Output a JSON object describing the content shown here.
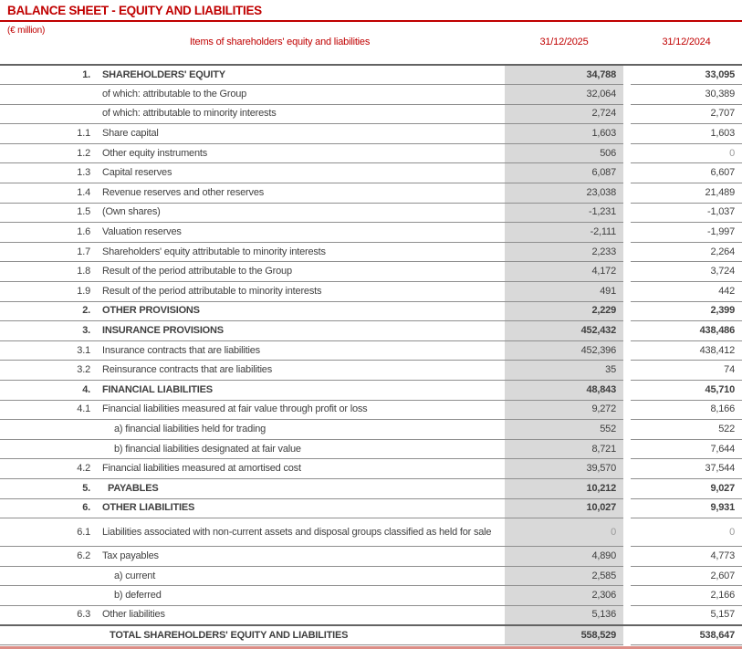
{
  "title": "BALANCE SHEET - EQUITY AND LIABILITIES",
  "unit_label": "(€ million)",
  "colors": {
    "accent_red": "#c00000",
    "column_shading": "#d9d9d9",
    "bottom_bar": "#dc8d86",
    "row_border": "#8f8f8f",
    "body_text": "#3f3f3f",
    "zero_value_text": "#9a9a9a"
  },
  "table": {
    "items_header": "Items of shareholders' equity and liabilities",
    "col_2025_header": "31/12/2025",
    "col_2024_header": "31/12/2024",
    "rows": [
      {
        "num": "1.",
        "label": "SHAREHOLDERS' EQUITY",
        "v2025": "34,788",
        "v2024": "33,095",
        "style": "section"
      },
      {
        "num": "",
        "label": "of which: attributable to the Group",
        "v2025": "32,064",
        "v2024": "30,389",
        "style": "normal"
      },
      {
        "num": "",
        "label": "of which: attributable to minority interests",
        "v2025": "2,724",
        "v2024": "2,707",
        "style": "normal"
      },
      {
        "num": "1.1",
        "label": "Share capital",
        "v2025": "1,603",
        "v2024": "1,603",
        "style": "normal"
      },
      {
        "num": "1.2",
        "label": "Other equity instruments",
        "v2025": "506",
        "v2024": "0",
        "style": "normal"
      },
      {
        "num": "1.3",
        "label": "Capital reserves",
        "v2025": "6,087",
        "v2024": "6,607",
        "style": "normal"
      },
      {
        "num": "1.4",
        "label": "Revenue reserves and other reserves",
        "v2025": "23,038",
        "v2024": "21,489",
        "style": "normal"
      },
      {
        "num": "1.5",
        "label": "(Own shares)",
        "v2025": "-1,231",
        "v2024": "-1,037",
        "style": "normal"
      },
      {
        "num": "1.6",
        "label": "Valuation reserves",
        "v2025": "-2,111",
        "v2024": "-1,997",
        "style": "normal"
      },
      {
        "num": "1.7",
        "label": "Shareholders' equity attributable to minority interests",
        "v2025": "2,233",
        "v2024": "2,264",
        "style": "normal"
      },
      {
        "num": "1.8",
        "label": "Result of the period attributable to the Group",
        "v2025": "4,172",
        "v2024": "3,724",
        "style": "normal"
      },
      {
        "num": "1.9",
        "label": "Result of the period attributable to minority interests",
        "v2025": "491",
        "v2024": "442",
        "style": "normal"
      },
      {
        "num": "2.",
        "label": "OTHER PROVISIONS",
        "v2025": "2,229",
        "v2024": "2,399",
        "style": "section"
      },
      {
        "num": "3.",
        "label": "INSURANCE PROVISIONS",
        "v2025": "452,432",
        "v2024": "438,486",
        "style": "section"
      },
      {
        "num": "3.1",
        "label": "Insurance contracts that are liabilities",
        "v2025": "452,396",
        "v2024": "438,412",
        "style": "normal"
      },
      {
        "num": "3.2",
        "label": "Reinsurance contracts that are liabilities",
        "v2025": "35",
        "v2024": "74",
        "style": "normal"
      },
      {
        "num": "4.",
        "label": "FINANCIAL LIABILITIES",
        "v2025": "48,843",
        "v2024": "45,710",
        "style": "section"
      },
      {
        "num": "4.1",
        "label": "Financial liabilities measured at fair value through profit or loss",
        "v2025": "9,272",
        "v2024": "8,166",
        "style": "normal"
      },
      {
        "num": "",
        "label": "a) financial liabilities held for trading",
        "v2025": "552",
        "v2024": "522",
        "style": "sub"
      },
      {
        "num": "",
        "label": "b) financial liabilities designated at fair value",
        "v2025": "8,721",
        "v2024": "7,644",
        "style": "sub"
      },
      {
        "num": "4.2",
        "label": "Financial liabilities measured at amortised cost",
        "v2025": "39,570",
        "v2024": "37,544",
        "style": "normal"
      },
      {
        "num": "5.",
        "label": "PAYABLES",
        "v2025": "10,212",
        "v2024": "9,027",
        "style": "section",
        "indent": "sm"
      },
      {
        "num": "6.",
        "label": "OTHER LIABILITIES",
        "v2025": "10,027",
        "v2024": "9,931",
        "style": "section"
      },
      {
        "num": "6.1",
        "label": "Liabilities associated with non-current assets and disposal groups classified as held for sale",
        "v2025": "0",
        "v2024": "0",
        "style": "normal",
        "tall": true
      },
      {
        "num": "6.2",
        "label": "Tax payables",
        "v2025": "4,890",
        "v2024": "4,773",
        "style": "normal"
      },
      {
        "num": "",
        "label": "a) current",
        "v2025": "2,585",
        "v2024": "2,607",
        "style": "sub"
      },
      {
        "num": "",
        "label": "b) deferred",
        "v2025": "2,306",
        "v2024": "2,166",
        "style": "sub"
      },
      {
        "num": "6.3",
        "label": "Other liabilities",
        "v2025": "5,136",
        "v2024": "5,157",
        "style": "normal"
      },
      {
        "num": "",
        "label": "TOTAL SHAREHOLDERS' EQUITY AND LIABILITIES",
        "v2025": "558,529",
        "v2024": "538,647",
        "style": "total"
      }
    ]
  }
}
